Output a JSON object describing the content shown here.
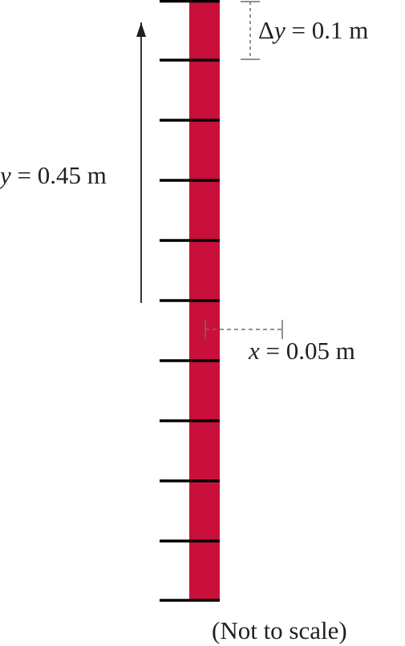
{
  "colors": {
    "bar": "#c8103a",
    "ink": "#231f20",
    "dim_line": "#6d6e71"
  },
  "labels": {
    "delta_y": {
      "var": "y",
      "equals": " = ",
      "value": "0.1 m"
    },
    "y": {
      "var": "y",
      "equals": " = ",
      "value": "0.45 m"
    },
    "x": {
      "var": "x",
      "equals": " = ",
      "value": "0.05 m"
    },
    "note": "(Not to scale)"
  }
}
